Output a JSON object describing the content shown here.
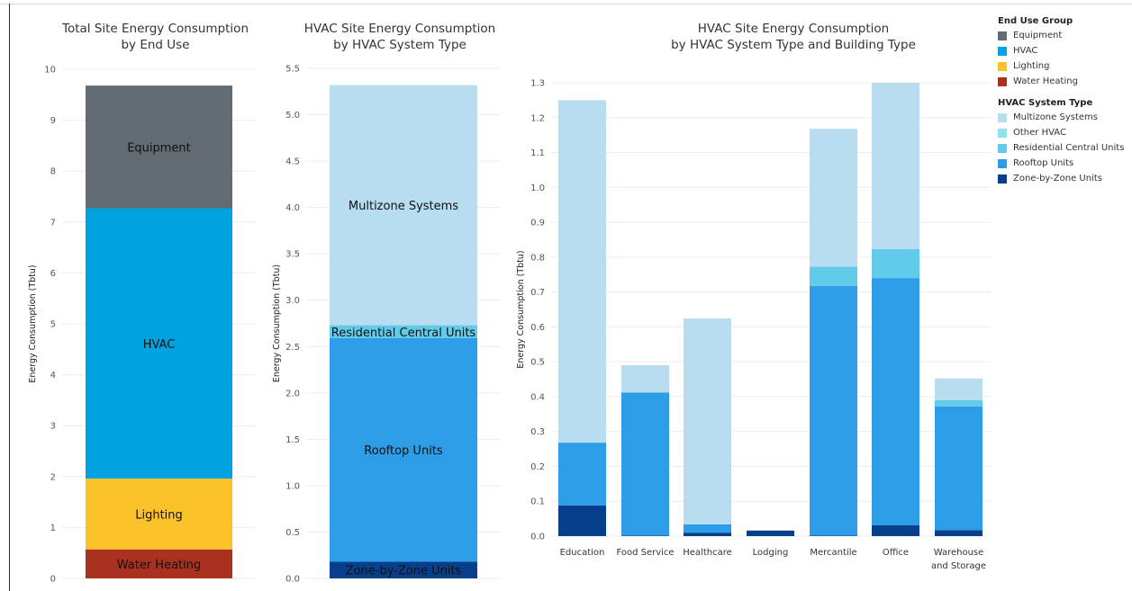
{
  "legend": {
    "end_use_title": "End Use Group",
    "end_use_items": [
      {
        "label": "Equipment",
        "color": "#636c72"
      },
      {
        "label": "HVAC",
        "color": "#00a3e0"
      },
      {
        "label": "Lighting",
        "color": "#fcc22a"
      },
      {
        "label": "Water Heating",
        "color": "#a93120"
      }
    ],
    "hvac_title": "HVAC System Type",
    "hvac_items": [
      {
        "label": "Multizone Systems",
        "color": "#b8dcf0"
      },
      {
        "label": "Other HVAC",
        "color": "#8fe3ee"
      },
      {
        "label": "Residential Central Units",
        "color": "#63cbea"
      },
      {
        "label": "Rooftop Units",
        "color": "#2e9de8"
      },
      {
        "label": "Zone-by-Zone Units",
        "color": "#073f8c"
      }
    ]
  },
  "chart_data": [
    {
      "type": "bar",
      "stacked": true,
      "title": [
        "Total Site Energy Consumption",
        "by End Use"
      ],
      "ylabel": "Energy Consumption (Tbtu)",
      "ylim": [
        0,
        10
      ],
      "yticks": [
        0,
        1,
        2,
        3,
        4,
        5,
        6,
        7,
        8,
        9,
        10
      ],
      "tick_decimals": 0,
      "grid": true,
      "categories": [
        ""
      ],
      "series": [
        {
          "name": "Water Heating",
          "color": "#a93120",
          "values": [
            0.57
          ]
        },
        {
          "name": "Lighting",
          "color": "#fcc22a",
          "values": [
            1.39
          ]
        },
        {
          "name": "HVAC",
          "color": "#00a3e0",
          "values": [
            5.31
          ]
        },
        {
          "name": "Equipment",
          "color": "#636c72",
          "values": [
            2.41
          ]
        }
      ]
    },
    {
      "type": "bar",
      "stacked": true,
      "title": [
        "HVAC Site Energy Consumption",
        "by HVAC System Type"
      ],
      "ylabel": "Energy Consumption (Tbtu)",
      "ylim": [
        0,
        5.5
      ],
      "yticks": [
        0,
        0.5,
        1,
        1.5,
        2,
        2.5,
        3,
        3.5,
        4,
        4.5,
        5,
        5.5
      ],
      "tick_decimals": 1,
      "grid": true,
      "categories": [
        ""
      ],
      "series": [
        {
          "name": "Zone-by-Zone Units",
          "color": "#073f8c",
          "values": [
            0.18
          ]
        },
        {
          "name": "Rooftop Units",
          "color": "#2e9de8",
          "values": [
            2.41
          ]
        },
        {
          "name": "Residential Central Units",
          "color": "#63cbea",
          "values": [
            0.14
          ]
        },
        {
          "name": "Multizone Systems",
          "color": "#b8dcf0",
          "values": [
            2.59
          ]
        }
      ]
    },
    {
      "type": "bar",
      "stacked": true,
      "title": [
        "HVAC Site Energy Consumption",
        "by HVAC System Type and Building Type"
      ],
      "ylabel": "Energy Consumption (Tbtu)",
      "ylim": [
        0,
        1.3
      ],
      "yticks": [
        0,
        0.1,
        0.2,
        0.3,
        0.4,
        0.5,
        0.6,
        0.7,
        0.8,
        0.9,
        1.0,
        1.1,
        1.2,
        1.3
      ],
      "tick_decimals": 1,
      "grid": true,
      "categories": [
        "Education",
        "Food Service",
        "Healthcare",
        "Lodging",
        "Mercantile",
        "Office",
        [
          "Warehouse",
          "and Storage"
        ]
      ],
      "series": [
        {
          "name": "Zone-by-Zone Units",
          "color": "#073f8c",
          "values": [
            0.088,
            0.002,
            0.01,
            0.016,
            0.002,
            0.031,
            0.017
          ]
        },
        {
          "name": "Rooftop Units",
          "color": "#2e9de8",
          "values": [
            0.18,
            0.41,
            0.024,
            0,
            0.715,
            0.709,
            0.355
          ]
        },
        {
          "name": "Residential Central Units",
          "color": "#63cbea",
          "values": [
            0,
            0,
            0,
            0,
            0.056,
            0.083,
            0.018
          ]
        },
        {
          "name": "Multizone Systems",
          "color": "#b8dcf0",
          "values": [
            0.982,
            0.078,
            0.59,
            0,
            0.395,
            0.477,
            0.062
          ]
        }
      ]
    }
  ]
}
